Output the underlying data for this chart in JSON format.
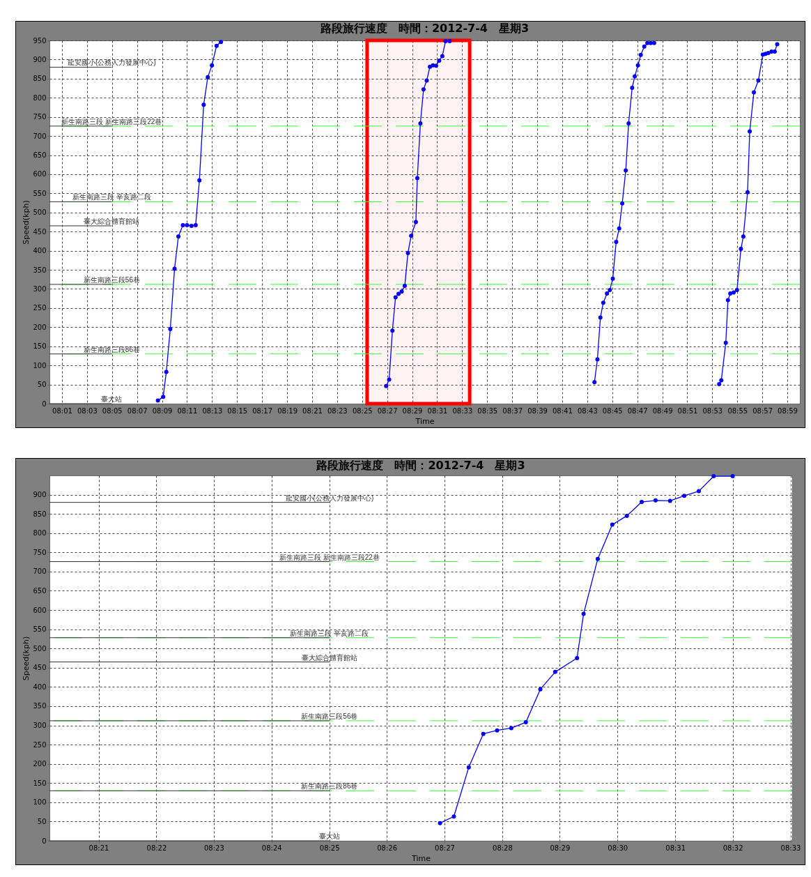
{
  "chart_data": [
    {
      "type": "line",
      "title": "路段旅行速度　時間：2012-7-4　星期3",
      "xlabel": "Time",
      "ylabel": "Speed(kph)",
      "xlim": [
        8,
        9
      ],
      "xticks": [
        {
          "value": 8.0167,
          "label": "08:01"
        },
        {
          "value": 8.05,
          "label": "08:03"
        },
        {
          "value": 8.0833,
          "label": "08:05"
        },
        {
          "value": 8.1167,
          "label": "08:07"
        },
        {
          "value": 8.15,
          "label": "08:09"
        },
        {
          "value": 8.1833,
          "label": "08:11"
        },
        {
          "value": 8.2167,
          "label": "08:13"
        },
        {
          "value": 8.25,
          "label": "08:15"
        },
        {
          "value": 8.2833,
          "label": "08:17"
        },
        {
          "value": 8.3167,
          "label": "08:19"
        },
        {
          "value": 8.35,
          "label": "08:21"
        },
        {
          "value": 8.3833,
          "label": "08:23"
        },
        {
          "value": 8.4167,
          "label": "08:25"
        },
        {
          "value": 8.45,
          "label": "08:27"
        },
        {
          "value": 8.4833,
          "label": "08:29"
        },
        {
          "value": 8.5167,
          "label": "08:31"
        },
        {
          "value": 8.55,
          "label": "08:33"
        },
        {
          "value": 8.5833,
          "label": "08:35"
        },
        {
          "value": 8.6167,
          "label": "08:37"
        },
        {
          "value": 8.65,
          "label": "08:39"
        },
        {
          "value": 8.6833,
          "label": "08:41"
        },
        {
          "value": 8.7167,
          "label": "08:43"
        },
        {
          "value": 8.75,
          "label": "08:45"
        },
        {
          "value": 8.7833,
          "label": "08:47"
        },
        {
          "value": 8.8167,
          "label": "08:49"
        },
        {
          "value": 8.85,
          "label": "08:51"
        },
        {
          "value": 8.8833,
          "label": "08:53"
        },
        {
          "value": 8.9167,
          "label": "08:55"
        },
        {
          "value": 8.95,
          "label": "08:57"
        },
        {
          "value": 8.9833,
          "label": "08:59"
        }
      ],
      "ylim": [
        0,
        950
      ],
      "yticks": [
        0,
        50,
        100,
        150,
        200,
        250,
        300,
        350,
        400,
        450,
        500,
        550,
        600,
        650,
        700,
        750,
        800,
        850,
        900,
        950
      ],
      "grid": true,
      "marker": "circle",
      "series": [
        {
          "color": "#0000ff",
          "x": [
            8.1445,
            8.1515,
            8.1557,
            8.161,
            8.1667,
            8.1718,
            8.1778,
            8.1833,
            8.1892,
            8.1948,
            8.1998,
            8.2055,
            8.211,
            8.2165,
            8.2227,
            8.2285
          ],
          "values": [
            8,
            18,
            83,
            195,
            353,
            437,
            467,
            467,
            465,
            467,
            584,
            782,
            854,
            885,
            936,
            946
          ]
        },
        {
          "color": "#0000ff",
          "x": [
            8.4487,
            8.4527,
            8.457,
            8.4612,
            8.4652,
            8.4693,
            8.4735,
            8.4777,
            8.482,
            8.4883,
            8.4902,
            8.4943,
            8.4985,
            8.5027,
            8.507,
            8.511,
            8.5152,
            8.5193,
            8.5235,
            8.5278,
            8.5333
          ],
          "values": [
            46,
            63,
            191,
            278,
            287,
            293,
            308,
            394,
            439,
            475,
            590,
            733,
            822,
            845,
            881,
            885,
            884,
            897,
            909,
            948,
            948
          ]
        },
        {
          "color": "#0000ff",
          "x": [
            8.7263,
            8.7302,
            8.7342,
            8.738,
            8.743,
            8.7468,
            8.7507,
            8.7552,
            8.7592,
            8.7633,
            8.768,
            8.7718,
            8.7765,
            8.78,
            8.7842,
            8.788,
            8.7927,
            8.7968,
            8.8012,
            8.8058
          ],
          "values": [
            56,
            116,
            225,
            264,
            288,
            297,
            327,
            423,
            458,
            524,
            610,
            733,
            826,
            856,
            885,
            912,
            934,
            943,
            943,
            943
          ]
        },
        {
          "color": "#0000ff",
          "x": [
            8.8925,
            8.8953,
            8.9013,
            8.9042,
            8.9073,
            8.9118,
            8.9162,
            8.9215,
            8.9247,
            8.9303,
            8.9332,
            8.9387,
            8.9447,
            8.9507,
            8.9542,
            8.958,
            8.9623,
            8.9665,
            8.9698
          ],
          "values": [
            51,
            61,
            159,
            271,
            288,
            291,
            297,
            405,
            437,
            553,
            712,
            814,
            845,
            913,
            915,
            917,
            921,
            921,
            940
          ]
        }
      ],
      "ref_lines": [
        {
          "axis": "y",
          "value": 726,
          "color": "#33ff33",
          "line_style": "dashed"
        },
        {
          "axis": "y",
          "value": 528,
          "color": "#33ff33",
          "line_style": "dashed"
        },
        {
          "axis": "y",
          "value": 312,
          "color": "#33ff33",
          "line_style": "dashed"
        },
        {
          "axis": "y",
          "value": 130,
          "color": "#33ff33",
          "line_style": "dashed"
        },
        {
          "axis": "y",
          "value": 880,
          "label": "龍安國小(公務人力發展中心)",
          "color": "#333333"
        },
        {
          "axis": "y",
          "value": 726,
          "label": "新生南路三段 新生南路三段22巷",
          "color": "#333333"
        },
        {
          "axis": "y",
          "value": 528,
          "label": "新生南路三段 辛亥路二段",
          "color": "#333333"
        },
        {
          "axis": "y",
          "value": 465,
          "label": "臺大綜合體育館站",
          "color": "#333333"
        },
        {
          "axis": "y",
          "value": 312,
          "label": "新生南路三段56巷",
          "color": "#333333"
        },
        {
          "axis": "y",
          "value": 130,
          "label": "新生南路三段86巷",
          "color": "#333333"
        },
        {
          "axis": "y",
          "value": 0,
          "label": "臺大站",
          "color": "#333333"
        }
      ],
      "bands": [
        {
          "axis": "x",
          "from": 8.4233,
          "to": 8.56,
          "color": "#ff0000"
        }
      ]
    },
    {
      "type": "line",
      "title": "路段旅行速度　時間：2012-7-4　星期3",
      "xlabel": "Time",
      "ylabel": "Speed(kph)",
      "xlim": [
        8.3358,
        8.5505
      ],
      "xticks": [
        {
          "value": 8.35,
          "label": "08:21"
        },
        {
          "value": 8.3667,
          "label": "08:22"
        },
        {
          "value": 8.3833,
          "label": "08:23"
        },
        {
          "value": 8.4,
          "label": "08:24"
        },
        {
          "value": 8.4167,
          "label": "08:25"
        },
        {
          "value": 8.4333,
          "label": "08:26"
        },
        {
          "value": 8.45,
          "label": "08:27"
        },
        {
          "value": 8.4667,
          "label": "08:28"
        },
        {
          "value": 8.4833,
          "label": "08:29"
        },
        {
          "value": 8.5,
          "label": "08:30"
        },
        {
          "value": 8.5167,
          "label": "08:31"
        },
        {
          "value": 8.5333,
          "label": "08:32"
        },
        {
          "value": 8.55,
          "label": "08:33"
        }
      ],
      "ylim": [
        0,
        950
      ],
      "yticks": [
        0,
        50,
        100,
        150,
        200,
        250,
        300,
        350,
        400,
        450,
        500,
        550,
        600,
        650,
        700,
        750,
        800,
        850,
        900
      ],
      "grid": true,
      "marker": "circle",
      "series": [
        {
          "color": "#0000ff",
          "x": [
            8.4487,
            8.4527,
            8.457,
            8.4612,
            8.4652,
            8.4693,
            8.4735,
            8.4777,
            8.482,
            8.4883,
            8.4902,
            8.4943,
            8.4985,
            8.5027,
            8.507,
            8.511,
            8.5152,
            8.5193,
            8.5235,
            8.5278,
            8.5333
          ],
          "values": [
            46,
            63,
            191,
            278,
            287,
            293,
            308,
            394,
            439,
            475,
            590,
            733,
            822,
            845,
            881,
            885,
            884,
            897,
            909,
            948,
            948
          ]
        }
      ],
      "ref_lines": [
        {
          "axis": "y",
          "value": 726,
          "color": "#33ff33",
          "line_style": "dashed"
        },
        {
          "axis": "y",
          "value": 528,
          "color": "#33ff33",
          "line_style": "dashed"
        },
        {
          "axis": "y",
          "value": 312,
          "color": "#33ff33",
          "line_style": "dashed"
        },
        {
          "axis": "y",
          "value": 130,
          "color": "#33ff33",
          "line_style": "dashed"
        },
        {
          "axis": "y",
          "value": 880,
          "label": "龍安國小(公務人力發展中心)",
          "color": "#333333"
        },
        {
          "axis": "y",
          "value": 726,
          "label": "新生南路三段 新生南路三段22巷",
          "color": "#333333"
        },
        {
          "axis": "y",
          "value": 528,
          "label": "新生南路三段 辛亥路二段",
          "color": "#333333"
        },
        {
          "axis": "y",
          "value": 465,
          "label": "臺大綜合體育館站",
          "color": "#333333"
        },
        {
          "axis": "y",
          "value": 312,
          "label": "新生南路三段56巷",
          "color": "#333333"
        },
        {
          "axis": "y",
          "value": 130,
          "label": "新生南路三段86巷",
          "color": "#333333"
        },
        {
          "axis": "y",
          "value": 0,
          "label": "臺大站",
          "color": "#333333"
        }
      ]
    }
  ]
}
